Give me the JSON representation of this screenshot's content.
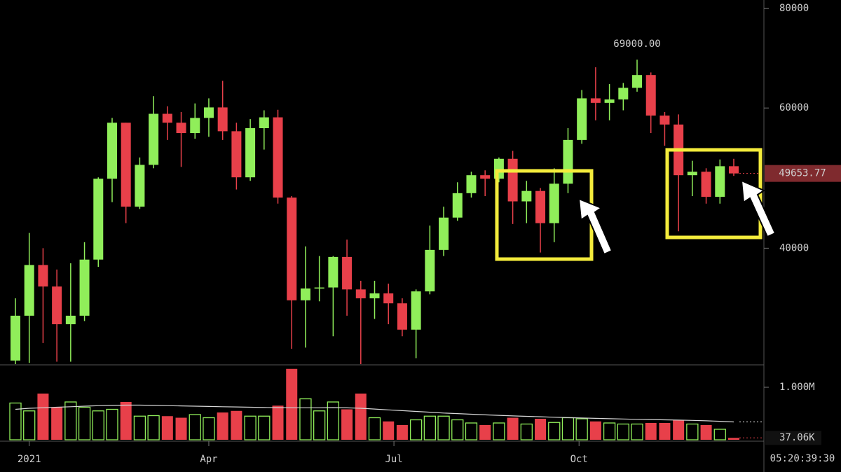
{
  "chart_data": {
    "type": "candlestick",
    "up_color": "#90ee5a",
    "down_color": "#e8404a",
    "log_scale": true,
    "ylim": [
      28600,
      82000
    ],
    "yticks": [
      40000,
      60000,
      80000
    ],
    "open": [
      28900,
      32900,
      38100,
      35800,
      32100,
      32900,
      38700,
      48900,
      57500,
      45100,
      50900,
      59000,
      57500,
      55800,
      58300,
      60100,
      56100,
      49100,
      56600,
      58400,
      46300,
      34400,
      35600,
      35700,
      39000,
      35500,
      34600,
      35100,
      34100,
      31600,
      35300,
      39800,
      43700,
      46900,
      49400,
      48900,
      51800,
      45800,
      47200,
      43000,
      48200,
      54700,
      61700,
      60900,
      61500,
      63600,
      66000,
      58700,
      57200,
      49400,
      49900,
      46400,
      50700
    ],
    "high": [
      34600,
      41800,
      40000,
      37600,
      38300,
      40700,
      49100,
      58300,
      57500,
      52000,
      62100,
      60300,
      59300,
      60800,
      61700,
      64900,
      57500,
      58100,
      59600,
      59700,
      46500,
      40200,
      39100,
      39100,
      41000,
      36400,
      36400,
      36100,
      34600,
      35500,
      42700,
      45100,
      48400,
      49900,
      50100,
      52000,
      53000,
      48600,
      47600,
      50400,
      56600,
      63200,
      67500,
      64300,
      64500,
      69000,
      66500,
      59300,
      58900,
      51500,
      50400,
      51700,
      51800
    ],
    "low": [
      28600,
      28700,
      30400,
      28800,
      28800,
      32400,
      37900,
      45700,
      43000,
      44800,
      50400,
      54700,
      50600,
      54900,
      55200,
      54700,
      47400,
      48600,
      53200,
      45500,
      29900,
      30000,
      34300,
      31000,
      32900,
      28600,
      32600,
      32100,
      31000,
      29100,
      35000,
      39100,
      43300,
      46300,
      46500,
      48400,
      42900,
      43000,
      39500,
      40700,
      46900,
      54100,
      57900,
      57900,
      59600,
      62900,
      55800,
      53800,
      42000,
      46500,
      45500,
      45500,
      49300
    ],
    "close": [
      32900,
      38100,
      35800,
      32100,
      32900,
      38700,
      48900,
      57500,
      45100,
      50900,
      59000,
      57500,
      55800,
      58300,
      60100,
      56100,
      49100,
      56600,
      58400,
      46300,
      34400,
      35600,
      35700,
      39000,
      35500,
      34600,
      35100,
      34100,
      31600,
      35300,
      39800,
      43700,
      46900,
      49400,
      48900,
      51800,
      45800,
      47200,
      43000,
      48200,
      54700,
      61700,
      60900,
      61500,
      63600,
      66000,
      58700,
      57200,
      49400,
      49900,
      46400,
      50700,
      49653.77
    ],
    "annotation": {
      "value": 69000,
      "label": "69000.00"
    },
    "xticks": [
      {
        "value": 1,
        "label": "2021"
      },
      {
        "value": 14,
        "label": "Apr"
      },
      {
        "value": 27.4,
        "label": "Jul"
      },
      {
        "value": 40.8,
        "label": "Oct"
      }
    ],
    "timer": "05:20:39:30",
    "volume": {
      "ylim": [
        0,
        1400000
      ],
      "yticks": [
        {
          "value": 1000000,
          "label": "1.000M"
        }
      ],
      "values": [
        700000,
        550000,
        880000,
        620000,
        720000,
        620000,
        550000,
        580000,
        720000,
        450000,
        460000,
        450000,
        420000,
        480000,
        420000,
        520000,
        550000,
        450000,
        450000,
        650000,
        1350000,
        780000,
        550000,
        720000,
        580000,
        880000,
        420000,
        350000,
        280000,
        380000,
        450000,
        450000,
        380000,
        320000,
        280000,
        320000,
        420000,
        300000,
        400000,
        330000,
        420000,
        400000,
        350000,
        320000,
        300000,
        300000,
        320000,
        320000,
        380000,
        300000,
        280000,
        200000,
        37060
      ],
      "last": {
        "value": 37060,
        "label": "37.06K"
      },
      "ma": [
        580000,
        600000,
        610000,
        620000,
        630000,
        640000,
        650000,
        655000,
        660000,
        660000,
        655000,
        650000,
        645000,
        640000,
        635000,
        630000,
        625000,
        620000,
        615000,
        612000,
        610000,
        610000,
        610000,
        612000,
        608000,
        600000,
        585000,
        570000,
        555000,
        540000,
        525000,
        510000,
        498000,
        486000,
        475000,
        465000,
        455000,
        446000,
        438000,
        430000,
        422000,
        415000,
        408000,
        402000,
        396000,
        390000,
        385000,
        380000,
        375000,
        370000,
        362000,
        352000,
        340000
      ],
      "ma_color": "#d8d8d8"
    }
  }
}
